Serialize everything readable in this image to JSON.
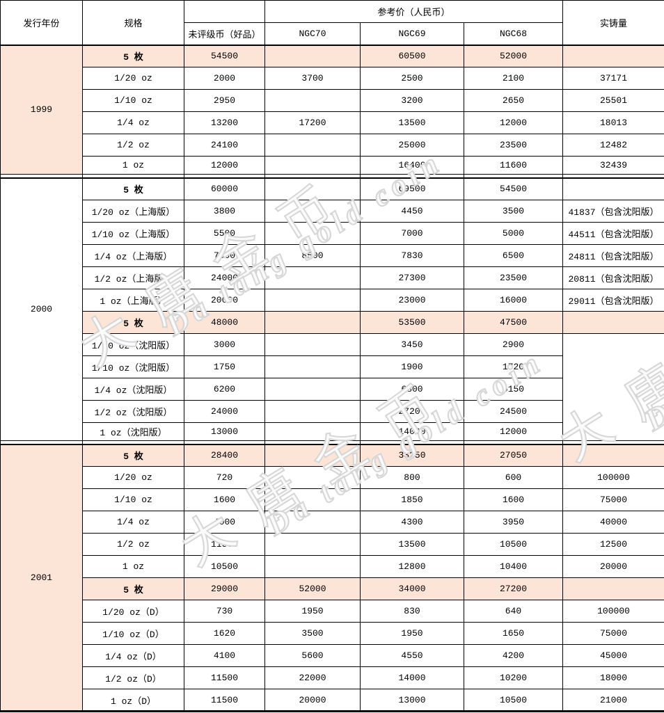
{
  "table": {
    "header": {
      "col_year": "发行年份",
      "col_spec": "规格",
      "price_group": "参考价（人民币）",
      "col_ungraded": "未评级币（好品）",
      "col_ngc70": "NGC70",
      "col_ngc69": "NGC69",
      "col_ngc68": "NGC68",
      "col_mintage": "实铸量"
    },
    "sections": [
      {
        "year": "1999",
        "rows": [
          {
            "spec": "5 枚",
            "hl": true,
            "dark": true,
            "ungraded": "54500",
            "ngc70": "",
            "ngc69": "60500",
            "ngc68": "52000",
            "mintage": ""
          },
          {
            "spec": "1/20 oz",
            "ungraded": "2000",
            "ngc70": "3700",
            "ngc69": "2500",
            "ngc68": "2100",
            "mintage": "37171"
          },
          {
            "spec": "1/10 oz",
            "ungraded": "2950",
            "ngc70": "",
            "ngc69": "3200",
            "ngc68": "2650",
            "mintage": "25501"
          },
          {
            "spec": "1/4 oz",
            "ungraded": "13200",
            "ngc70": "17200",
            "ngc69": "13500",
            "ngc68": "12000",
            "mintage": "18013"
          },
          {
            "spec": "1/2 oz",
            "ungraded": "24100",
            "ngc70": "",
            "ngc69": "25000",
            "ngc68": "23500",
            "mintage": "12482"
          },
          {
            "spec": "1 oz",
            "ungraded": "12000",
            "ngc70": "",
            "ngc69": "16400",
            "ngc68": "11600",
            "mintage": "32439"
          }
        ]
      },
      {
        "year": "2000",
        "rows": [
          {
            "spec": "5 枚",
            "ungraded": "60000",
            "ngc70": "",
            "ngc69": "69500",
            "ngc68": "54500",
            "mintage": ""
          },
          {
            "spec": "1/20 oz（上海版）",
            "ungraded": "3800",
            "ngc70": "",
            "ngc69": "4450",
            "ngc68": "3500",
            "mintage": "41837（包含沈阳版）"
          },
          {
            "spec": "1/10 oz（上海版）",
            "ungraded": "5500",
            "ngc70": "",
            "ngc69": "7000",
            "ngc68": "5000",
            "mintage": "44511（包含沈阳版）"
          },
          {
            "spec": "1/4 oz（上海版）",
            "ungraded": "7000",
            "ngc70": "8500",
            "ngc69": "7830",
            "ngc68": "6500",
            "mintage": "24811（包含沈阳版）"
          },
          {
            "spec": "1/2 oz（上海版）",
            "ungraded": "24000",
            "ngc70": "",
            "ngc69": "27300",
            "ngc68": "23500",
            "mintage": "20811（包含沈阳版）"
          },
          {
            "spec": "1 oz（上海版）",
            "ungraded": "20000",
            "ngc70": "",
            "ngc69": "23000",
            "ngc68": "16000",
            "mintage": "29011（包含沈阳版）"
          },
          {
            "spec": "5 枚",
            "hl": true,
            "ungraded": "48000",
            "ngc70": "",
            "ngc69": "53500",
            "ngc68": "47500",
            "mintage": ""
          },
          {
            "spec": "1/20 oz（沈阳版）",
            "ungraded": "3000",
            "ngc70": "",
            "ngc69": "3450",
            "ngc68": "2900",
            "mintage": "",
            "mintage_span": 5
          },
          {
            "spec": "1/10 oz（沈阳版）",
            "ungraded": "1750",
            "ngc70": "",
            "ngc69": "1900",
            "ngc68": "1720",
            "mintage": null
          },
          {
            "spec": "1/4 oz（沈阳版）",
            "ungraded": "6200",
            "ngc70": "",
            "ngc69": "6800",
            "ngc68": "6150",
            "mintage": null
          },
          {
            "spec": "1/2 oz（沈阳版）",
            "ungraded": "24000",
            "ngc70": "",
            "ngc69": "27200",
            "ngc68": "24500",
            "mintage": null
          },
          {
            "spec": "1 oz（沈阳版）",
            "ungraded": "13000",
            "ngc70": "",
            "ngc69": "14000",
            "ngc68": "12000",
            "mintage": null
          }
        ]
      },
      {
        "year": "2001",
        "rows": [
          {
            "spec": "5 枚",
            "hl": true,
            "ungraded": "28400",
            "ngc70": "",
            "ngc69": "33250",
            "ngc68": "27050",
            "mintage": ""
          },
          {
            "spec": "1/20 oz",
            "ungraded": "720",
            "ngc70": "",
            "ngc69": "800",
            "ngc68": "600",
            "mintage": "100000"
          },
          {
            "spec": "1/10 oz",
            "ungraded": "1600",
            "ngc70": "",
            "ngc69": "1850",
            "ngc68": "1600",
            "mintage": "75000"
          },
          {
            "spec": "1/4 oz",
            "ungraded": "4000",
            "ngc70": "",
            "ngc69": "4300",
            "ngc68": "3950",
            "mintage": "40000"
          },
          {
            "spec": "1/2 oz",
            "ungraded": "11500",
            "ngc70": "",
            "ngc69": "13500",
            "ngc68": "10500",
            "mintage": "12500"
          },
          {
            "spec": "1 oz",
            "ungraded": "10500",
            "ngc70": "",
            "ngc69": "12800",
            "ngc68": "10400",
            "mintage": "20000"
          },
          {
            "spec": "5 枚",
            "hl": true,
            "ungraded": "29000",
            "ngc70": "52000",
            "ngc69": "34000",
            "ngc68": "27200",
            "mintage": ""
          },
          {
            "spec": "1/20 oz（D）",
            "ungraded": "730",
            "ngc70": "1950",
            "ngc69": "830",
            "ngc68": "640",
            "mintage": "100000"
          },
          {
            "spec": "1/10 oz（D）",
            "ungraded": "1620",
            "ngc70": "3500",
            "ngc69": "1950",
            "ngc68": "1650",
            "mintage": "75000"
          },
          {
            "spec": "1/4 oz（D）",
            "ungraded": "4100",
            "ngc70": "5600",
            "ngc69": "4550",
            "ngc68": "4200",
            "mintage": "45000"
          },
          {
            "spec": "1/2 oz（D）",
            "ungraded": "11500",
            "ngc70": "22000",
            "ngc69": "14000",
            "ngc68": "10200",
            "mintage": "18000"
          },
          {
            "spec": "1 oz（D）",
            "ungraded": "11500",
            "ngc70": "20000",
            "ngc69": "13000",
            "ngc68": "10500",
            "mintage": "21000"
          }
        ]
      }
    ]
  },
  "watermark": {
    "cn": "大唐金币",
    "en": "Da tang gold coin"
  },
  "colors": {
    "row_highlight": "#FCE4D6",
    "cell_highlight_dark": "#F8CBAD",
    "border": "#000000",
    "watermark": "#d6d6d6"
  }
}
